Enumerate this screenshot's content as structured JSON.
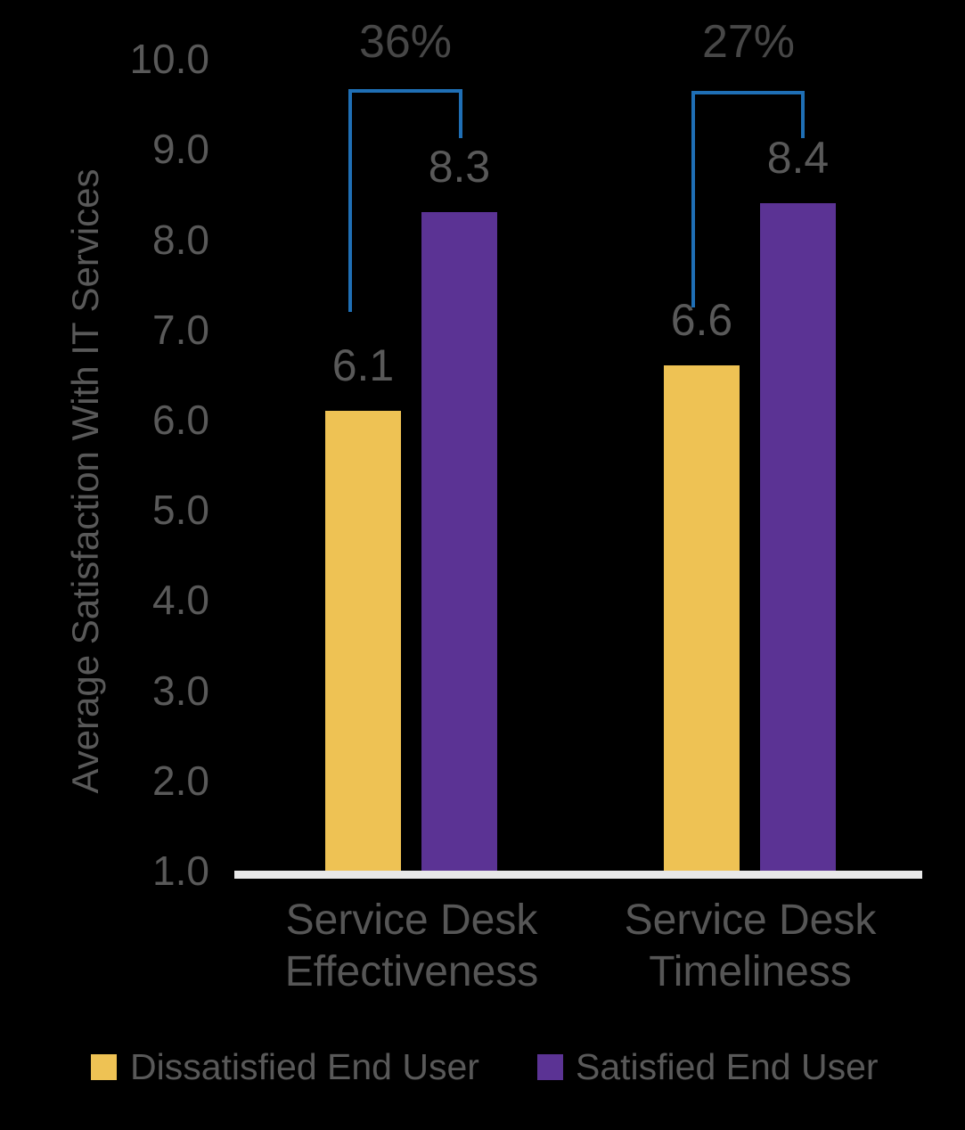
{
  "chart_data": {
    "type": "bar",
    "ylabel": "Average Satisfaction With IT Services",
    "categories": [
      "Service Desk Effectiveness",
      "Service Desk Timeliness"
    ],
    "category_lines": [
      [
        "Service Desk",
        "Effectiveness"
      ],
      [
        "Service Desk",
        "Timeliness"
      ]
    ],
    "series": [
      {
        "name": "Dissatisfied End User",
        "color": "#EEC254",
        "values": [
          6.1,
          6.6
        ]
      },
      {
        "name": "Satisfied End User",
        "color": "#5B3394",
        "values": [
          8.3,
          8.4
        ]
      }
    ],
    "difference_labels": [
      "36%",
      "27%"
    ],
    "y_axis": {
      "min": 1.0,
      "max": 10.0,
      "tick_step": 1.0,
      "tick_labels": [
        "10.0",
        "9.0",
        "8.0",
        "7.0",
        "6.0",
        "5.0",
        "4.0",
        "3.0",
        "2.0",
        "1.0"
      ]
    },
    "grid": false,
    "legend_position": "bottom",
    "colors": {
      "background": "#000000",
      "axis_text": "#595959",
      "category_text": "#565656",
      "percent_text": "#474747",
      "bracket_blue": "#1F6FB5",
      "baseline": "#E8E8E8",
      "dissatisfied_yellow": "#EEC254",
      "satisfied_purple": "#5B3394"
    }
  }
}
